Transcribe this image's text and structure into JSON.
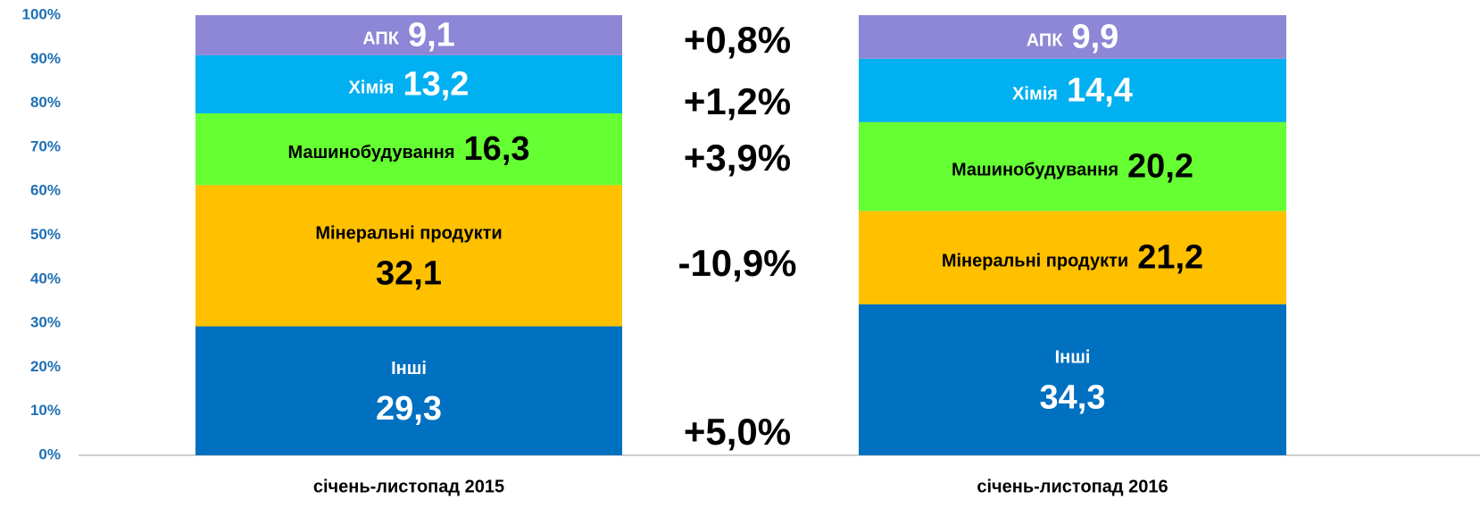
{
  "chart_data": {
    "type": "stacked_bar",
    "categories": [
      "січень-листопад 2015",
      "січень-листопад 2016"
    ],
    "series": [
      {
        "name": "Інші",
        "color": "#0070c0",
        "label_color": "#ffffff",
        "values": [
          29.3,
          34.3
        ],
        "value_labels": [
          "29,3",
          "34,3"
        ]
      },
      {
        "name": "Мінеральні продукти",
        "color": "#ffc000",
        "label_color": "#000000",
        "values": [
          32.1,
          21.2
        ],
        "value_labels": [
          "32,1",
          "21,2"
        ]
      },
      {
        "name": "Машинобудування",
        "color": "#66ff33",
        "label_color": "#000000",
        "values": [
          16.3,
          20.2
        ],
        "value_labels": [
          "16,3",
          "20,2"
        ]
      },
      {
        "name": "Хімія",
        "color": "#00b0f0",
        "label_color": "#ffffff",
        "values": [
          13.2,
          14.4
        ],
        "value_labels": [
          "13,2",
          "14,4"
        ]
      },
      {
        "name": "АПК",
        "color": "#8e86d6",
        "label_color": "#ffffff",
        "values": [
          9.1,
          9.9
        ],
        "value_labels": [
          "9,1",
          "9,9"
        ]
      }
    ],
    "changes": [
      5.0,
      -10.9,
      3.9,
      1.2,
      0.8
    ],
    "change_labels": [
      "+5,0%",
      "-10,9%",
      "+3,9%",
      "+1,2%",
      "+0,8%"
    ],
    "ylim": [
      0,
      100
    ],
    "yticks": [
      {
        "value": 0,
        "label": "0%"
      },
      {
        "value": 10,
        "label": "10%"
      },
      {
        "value": 20,
        "label": "20%"
      },
      {
        "value": 30,
        "label": "30%"
      },
      {
        "value": 40,
        "label": "40%"
      },
      {
        "value": 50,
        "label": "50%"
      },
      {
        "value": 60,
        "label": "60%"
      },
      {
        "value": 70,
        "label": "70%"
      },
      {
        "value": 80,
        "label": "80%"
      },
      {
        "value": 90,
        "label": "90%"
      },
      {
        "value": 100,
        "label": "100%"
      }
    ]
  }
}
